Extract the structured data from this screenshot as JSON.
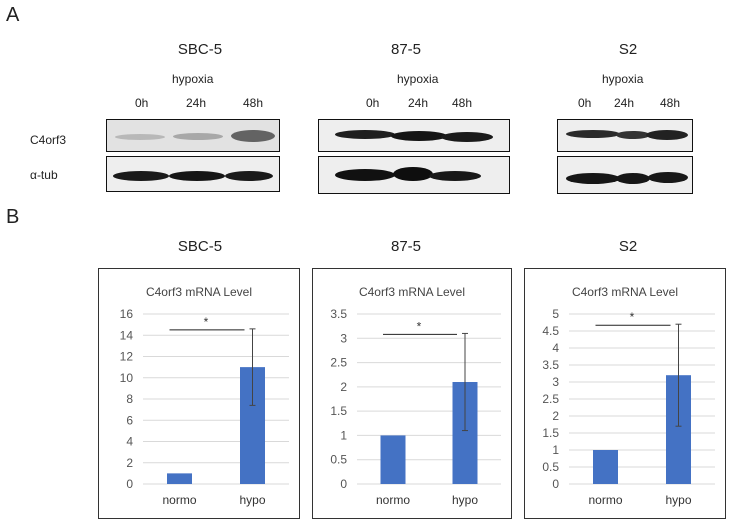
{
  "panels": {
    "a": {
      "letter": "A",
      "groups": [
        {
          "title": "SBC-5",
          "condition": "hypoxia",
          "timepoints": [
            "0h",
            "24h",
            "48h"
          ]
        },
        {
          "title": "87-5",
          "condition": "hypoxia",
          "timepoints": [
            "0h",
            "24h",
            "48h"
          ]
        },
        {
          "title": "S2",
          "condition": "hypoxia",
          "timepoints": [
            "0h",
            "24h",
            "48h"
          ]
        }
      ],
      "row_labels": [
        "C4orf3",
        "α-tub"
      ]
    },
    "b": {
      "letter": "B",
      "cell_titles": [
        "SBC-5",
        "87-5",
        "S2"
      ]
    }
  },
  "colors": {
    "bar": "#4472c4",
    "grid": "#d9d9d9",
    "axis_text": "#555555"
  },
  "chart_data": [
    {
      "type": "bar",
      "title": "C4orf3 mRNA Level",
      "categories": [
        "normo",
        "hypo"
      ],
      "values": [
        1,
        11
      ],
      "error": [
        0,
        3.6
      ],
      "ylim": [
        0,
        16
      ],
      "yticks": [
        0,
        2,
        4,
        6,
        8,
        10,
        12,
        14,
        16
      ],
      "significance": "*"
    },
    {
      "type": "bar",
      "title": "C4orf3 mRNA Level",
      "categories": [
        "normo",
        "hypo"
      ],
      "values": [
        1,
        2.1
      ],
      "error": [
        0,
        1.0
      ],
      "ylim": [
        0,
        3.5
      ],
      "yticks": [
        0,
        0.5,
        1,
        1.5,
        2,
        2.5,
        3,
        3.5
      ],
      "significance": "*"
    },
    {
      "type": "bar",
      "title": "C4orf3 mRNA Level",
      "categories": [
        "normo",
        "hypo"
      ],
      "values": [
        1,
        3.2
      ],
      "error": [
        0,
        1.5
      ],
      "ylim": [
        0,
        5
      ],
      "yticks": [
        0,
        0.5,
        1,
        1.5,
        2,
        2.5,
        3,
        3.5,
        4,
        4.5,
        5
      ],
      "significance": "*"
    }
  ]
}
